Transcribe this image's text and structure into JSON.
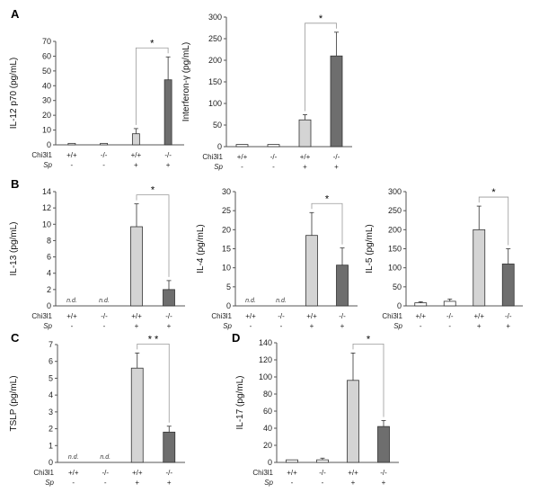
{
  "chart_data": [
    {
      "panel": "A",
      "type": "bar",
      "ylabel": "IL-12 p70 (pg/mL)",
      "ylim": [
        0,
        70
      ],
      "yticks": [
        0,
        10,
        20,
        30,
        40,
        50,
        60,
        70
      ],
      "values": [
        1,
        1,
        7.5,
        44
      ],
      "errors": [
        0,
        0,
        3.5,
        15.5
      ],
      "nd": [
        false,
        false,
        false,
        false
      ],
      "significance": {
        "from": 2,
        "to": 3,
        "label": "*"
      }
    },
    {
      "panel": "",
      "type": "bar",
      "ylabel": "Interferon-γ (pg/mL)",
      "ylim": [
        0,
        300
      ],
      "yticks": [
        0,
        50,
        100,
        150,
        200,
        250,
        300
      ],
      "values": [
        5,
        5,
        62,
        210
      ],
      "errors": [
        0,
        0,
        12,
        55
      ],
      "nd": [
        false,
        false,
        false,
        false
      ],
      "significance": {
        "from": 2,
        "to": 3,
        "label": "*"
      }
    },
    {
      "panel": "B",
      "type": "bar",
      "ylabel": "IL-13 (pg/mL)",
      "ylim": [
        0,
        14
      ],
      "yticks": [
        0,
        2,
        4,
        6,
        8,
        10,
        12,
        14
      ],
      "values": [
        0,
        0,
        9.7,
        2
      ],
      "errors": [
        0,
        0,
        2.8,
        1.1
      ],
      "nd": [
        true,
        true,
        false,
        false
      ],
      "significance": {
        "from": 2,
        "to": 3,
        "label": "*"
      }
    },
    {
      "panel": "",
      "type": "bar",
      "ylabel": "IL-4 (pg/mL)",
      "ylim": [
        0,
        30
      ],
      "yticks": [
        0,
        5,
        10,
        15,
        20,
        25,
        30
      ],
      "values": [
        0,
        0,
        18.5,
        10.7
      ],
      "errors": [
        0,
        0,
        6,
        4.5
      ],
      "nd": [
        true,
        true,
        false,
        false
      ],
      "significance": {
        "from": 2,
        "to": 3,
        "label": "*"
      }
    },
    {
      "panel": "",
      "type": "bar",
      "ylabel": "IL-5 (pg/mL)",
      "ylim": [
        0,
        300
      ],
      "yticks": [
        0,
        50,
        100,
        150,
        200,
        250,
        300
      ],
      "values": [
        8,
        12,
        200,
        110
      ],
      "errors": [
        3,
        6,
        62,
        40
      ],
      "nd": [
        false,
        false,
        false,
        false
      ],
      "significance": {
        "from": 2,
        "to": 3,
        "label": "*"
      }
    },
    {
      "panel": "C",
      "type": "bar",
      "ylabel": "TSLP (pg/mL)",
      "ylim": [
        0,
        7
      ],
      "yticks": [
        0,
        1,
        2,
        3,
        4,
        5,
        6,
        7
      ],
      "values": [
        0,
        0,
        5.6,
        1.8
      ],
      "errors": [
        0,
        0,
        0.9,
        0.35
      ],
      "nd": [
        true,
        true,
        false,
        false
      ],
      "significance": {
        "from": 2,
        "to": 3,
        "label": "* *"
      }
    },
    {
      "panel": "D",
      "type": "bar",
      "ylabel": "IL-17 (pg/mL)",
      "ylim": [
        0,
        140
      ],
      "yticks": [
        0,
        20,
        40,
        60,
        80,
        100,
        120,
        140
      ],
      "values": [
        3,
        3,
        96,
        42
      ],
      "errors": [
        0,
        2,
        32,
        7
      ],
      "nd": [
        false,
        false,
        false,
        false
      ],
      "significance": {
        "from": 2,
        "to": 3,
        "label": "*"
      }
    }
  ],
  "groups": {
    "row1_label": "Chi3l1",
    "row1": [
      "+/+",
      "-/-",
      "+/+",
      "-/-"
    ],
    "row2_label": "Sp",
    "row2": [
      "-",
      "-",
      "+",
      "+"
    ]
  },
  "nd_label": "n.d.",
  "colors": {
    "wt_untreated": "#ffffff",
    "ko_untreated": "#ffffff",
    "wt_sp": "#d4d4d4",
    "ko_sp": "#6e6e6e",
    "axis": "#555555",
    "bracket": "#999999"
  }
}
